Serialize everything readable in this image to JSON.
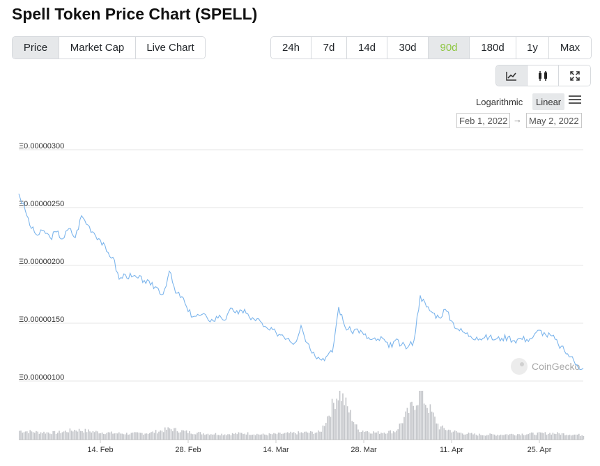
{
  "page": {
    "title": "Spell Token Price Chart (SPELL)"
  },
  "view_tabs": [
    {
      "label": "Price",
      "active": true
    },
    {
      "label": "Market Cap",
      "active": false
    },
    {
      "label": "Live Chart",
      "active": false
    }
  ],
  "range_tabs": [
    {
      "label": "24h",
      "active": false
    },
    {
      "label": "7d",
      "active": false
    },
    {
      "label": "14d",
      "active": false
    },
    {
      "label": "30d",
      "active": false
    },
    {
      "label": "90d",
      "active": true
    },
    {
      "label": "180d",
      "active": false
    },
    {
      "label": "1y",
      "active": false
    },
    {
      "label": "Max",
      "active": false
    }
  ],
  "chart_type_tabs": [
    {
      "icon": "line-chart-icon",
      "active": true
    },
    {
      "icon": "candlestick-icon",
      "active": false
    },
    {
      "icon": "fullscreen-icon",
      "active": false
    }
  ],
  "scale": {
    "log_label": "Logarithmic",
    "linear_label": "Linear",
    "selected": "Linear"
  },
  "date_range": {
    "from": "Feb 1, 2022",
    "to": "May 2, 2022",
    "arrow": "→"
  },
  "watermark": {
    "text": "CoinGecko"
  },
  "colors": {
    "accent": "#8dc63f",
    "line": "#7cb5ec",
    "volume": "#c4c6ca",
    "grid": "#e6e6e6"
  },
  "chart_data": {
    "type": "line",
    "title": "",
    "xlabel": "",
    "ylabel": "",
    "y_scale": "linear",
    "ylim": [
      1e-06,
      3e-06
    ],
    "y_ticks": [
      {
        "value": 3e-06,
        "label": "Ξ0.00000300"
      },
      {
        "value": 2.5e-06,
        "label": "Ξ0.00000250"
      },
      {
        "value": 2e-06,
        "label": "Ξ0.00000200"
      },
      {
        "value": 1.5e-06,
        "label": "Ξ0.00000150"
      },
      {
        "value": 1e-06,
        "label": "Ξ0.00000100"
      }
    ],
    "x_range": [
      "2022-02-01",
      "2022-05-02"
    ],
    "x_ticks": [
      {
        "date": "2022-02-14",
        "label": "14. Feb"
      },
      {
        "date": "2022-02-28",
        "label": "28. Feb"
      },
      {
        "date": "2022-03-14",
        "label": "14. Mar"
      },
      {
        "date": "2022-03-28",
        "label": "28. Mar"
      },
      {
        "date": "2022-04-11",
        "label": "11. Apr"
      },
      {
        "date": "2022-04-25",
        "label": "25. Apr"
      }
    ],
    "grid": true,
    "legend": "none",
    "series": [
      {
        "values": [
          [
            "2022-02-01",
            2.62e-06
          ],
          [
            "2022-02-02",
            2.48e-06
          ],
          [
            "2022-02-03",
            2.32e-06
          ],
          [
            "2022-02-04",
            2.26e-06
          ],
          [
            "2022-02-05",
            2.3e-06
          ],
          [
            "2022-02-06",
            2.24e-06
          ],
          [
            "2022-02-07",
            2.29e-06
          ],
          [
            "2022-02-08",
            2.23e-06
          ],
          [
            "2022-02-09",
            2.32e-06
          ],
          [
            "2022-02-10",
            2.24e-06
          ],
          [
            "2022-02-11",
            2.43e-06
          ],
          [
            "2022-02-12",
            2.35e-06
          ],
          [
            "2022-02-13",
            2.28e-06
          ],
          [
            "2022-02-14",
            2.22e-06
          ],
          [
            "2022-02-15",
            2.12e-06
          ],
          [
            "2022-02-16",
            2.07e-06
          ],
          [
            "2022-02-17",
            1.88e-06
          ],
          [
            "2022-02-18",
            1.92e-06
          ],
          [
            "2022-02-19",
            1.9e-06
          ],
          [
            "2022-02-20",
            1.89e-06
          ],
          [
            "2022-02-21",
            1.87e-06
          ],
          [
            "2022-02-22",
            1.83e-06
          ],
          [
            "2022-02-23",
            1.81e-06
          ],
          [
            "2022-02-24",
            1.75e-06
          ],
          [
            "2022-02-25",
            1.95e-06
          ],
          [
            "2022-02-26",
            1.76e-06
          ],
          [
            "2022-02-27",
            1.73e-06
          ],
          [
            "2022-02-28",
            1.6e-06
          ],
          [
            "2022-03-01",
            1.56e-06
          ],
          [
            "2022-03-02",
            1.57e-06
          ],
          [
            "2022-03-03",
            1.55e-06
          ],
          [
            "2022-03-04",
            1.52e-06
          ],
          [
            "2022-03-05",
            1.57e-06
          ],
          [
            "2022-03-06",
            1.53e-06
          ],
          [
            "2022-03-07",
            1.63e-06
          ],
          [
            "2022-03-08",
            1.58e-06
          ],
          [
            "2022-03-09",
            1.62e-06
          ],
          [
            "2022-03-10",
            1.53e-06
          ],
          [
            "2022-03-11",
            1.54e-06
          ],
          [
            "2022-03-12",
            1.47e-06
          ],
          [
            "2022-03-13",
            1.44e-06
          ],
          [
            "2022-03-14",
            1.42e-06
          ],
          [
            "2022-03-15",
            1.4e-06
          ],
          [
            "2022-03-16",
            1.37e-06
          ],
          [
            "2022-03-17",
            1.33e-06
          ],
          [
            "2022-03-18",
            1.48e-06
          ],
          [
            "2022-03-19",
            1.33e-06
          ],
          [
            "2022-03-20",
            1.25e-06
          ],
          [
            "2022-03-21",
            1.19e-06
          ],
          [
            "2022-03-22",
            1.21e-06
          ],
          [
            "2022-03-23",
            1.25e-06
          ],
          [
            "2022-03-24",
            1.64e-06
          ],
          [
            "2022-03-25",
            1.47e-06
          ],
          [
            "2022-03-26",
            1.43e-06
          ],
          [
            "2022-03-27",
            1.45e-06
          ],
          [
            "2022-03-28",
            1.4e-06
          ],
          [
            "2022-03-29",
            1.36e-06
          ],
          [
            "2022-03-30",
            1.35e-06
          ],
          [
            "2022-03-31",
            1.37e-06
          ],
          [
            "2022-04-01",
            1.29e-06
          ],
          [
            "2022-04-02",
            1.35e-06
          ],
          [
            "2022-04-03",
            1.31e-06
          ],
          [
            "2022-04-04",
            1.29e-06
          ],
          [
            "2022-04-05",
            1.35e-06
          ],
          [
            "2022-04-06",
            1.74e-06
          ],
          [
            "2022-04-07",
            1.64e-06
          ],
          [
            "2022-04-08",
            1.59e-06
          ],
          [
            "2022-04-09",
            1.55e-06
          ],
          [
            "2022-04-10",
            1.62e-06
          ],
          [
            "2022-04-11",
            1.52e-06
          ],
          [
            "2022-04-12",
            1.45e-06
          ],
          [
            "2022-04-13",
            1.42e-06
          ],
          [
            "2022-04-14",
            1.39e-06
          ],
          [
            "2022-04-15",
            1.38e-06
          ],
          [
            "2022-04-16",
            1.37e-06
          ],
          [
            "2022-04-17",
            1.38e-06
          ],
          [
            "2022-04-18",
            1.36e-06
          ],
          [
            "2022-04-19",
            1.37e-06
          ],
          [
            "2022-04-20",
            1.38e-06
          ],
          [
            "2022-04-21",
            1.35e-06
          ],
          [
            "2022-04-22",
            1.37e-06
          ],
          [
            "2022-04-23",
            1.36e-06
          ],
          [
            "2022-04-24",
            1.38e-06
          ],
          [
            "2022-04-25",
            1.44e-06
          ],
          [
            "2022-04-26",
            1.4e-06
          ],
          [
            "2022-04-27",
            1.39e-06
          ],
          [
            "2022-04-28",
            1.32e-06
          ],
          [
            "2022-04-29",
            1.26e-06
          ],
          [
            "2022-04-30",
            1.21e-06
          ],
          [
            "2022-05-01",
            1.14e-06
          ],
          [
            "2022-05-02",
            1.11e-06
          ]
        ]
      }
    ],
    "volume": {
      "peak_dates": [
        "2022-03-24",
        "2022-04-06"
      ],
      "values": [
        [
          "2022-02-01",
          0.18
        ],
        [
          "2022-02-04",
          0.15
        ],
        [
          "2022-02-07",
          0.14
        ],
        [
          "2022-02-10",
          0.2
        ],
        [
          "2022-02-13",
          0.16
        ],
        [
          "2022-02-16",
          0.13
        ],
        [
          "2022-02-19",
          0.12
        ],
        [
          "2022-02-22",
          0.14
        ],
        [
          "2022-02-25",
          0.22
        ],
        [
          "2022-02-28",
          0.15
        ],
        [
          "2022-03-03",
          0.12
        ],
        [
          "2022-03-06",
          0.11
        ],
        [
          "2022-03-09",
          0.13
        ],
        [
          "2022-03-12",
          0.1
        ],
        [
          "2022-03-15",
          0.12
        ],
        [
          "2022-03-18",
          0.14
        ],
        [
          "2022-03-21",
          0.15
        ],
        [
          "2022-03-24",
          1.0
        ],
        [
          "2022-03-27",
          0.2
        ],
        [
          "2022-03-30",
          0.14
        ],
        [
          "2022-04-02",
          0.17
        ],
        [
          "2022-04-06",
          0.95
        ],
        [
          "2022-04-09",
          0.25
        ],
        [
          "2022-04-12",
          0.14
        ],
        [
          "2022-04-15",
          0.1
        ],
        [
          "2022-04-18",
          0.1
        ],
        [
          "2022-04-21",
          0.11
        ],
        [
          "2022-04-24",
          0.12
        ],
        [
          "2022-04-27",
          0.13
        ],
        [
          "2022-05-02",
          0.09
        ]
      ]
    }
  }
}
